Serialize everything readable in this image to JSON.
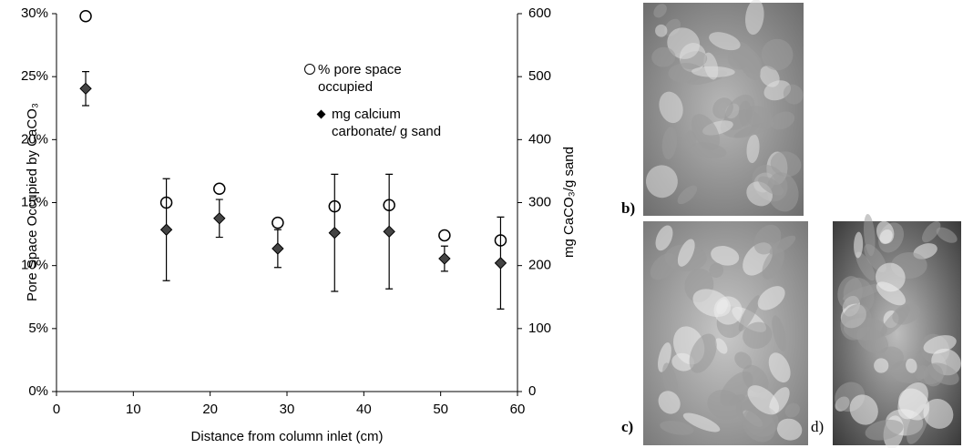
{
  "chart_data": {
    "type": "scatter",
    "x": [
      3.8,
      14.3,
      21.2,
      28.8,
      36.2,
      43.3,
      50.5,
      57.8
    ],
    "series": [
      {
        "name": "% pore space occupied",
        "marker": "circle",
        "color": "#000000",
        "values": [
          29.8,
          15.0,
          16.1,
          13.4,
          14.7,
          14.8,
          12.4,
          12.0
        ]
      },
      {
        "name": "mg calcium carbonate/ g sand",
        "marker": "diamond",
        "color": "#000000",
        "axis": "y2",
        "values": [
          481,
          257,
          275,
          227,
          252,
          254,
          211,
          204
        ],
        "errors": [
          27,
          81,
          30,
          30,
          93,
          91,
          20,
          73
        ]
      }
    ],
    "xlabel": "Distance from column inlet (cm)",
    "ylabel": "Pore Space Occupied by CaCO₃",
    "y2label": "mg CaCO₃/g sand",
    "xlim": [
      0,
      60
    ],
    "xticks": [
      0,
      10,
      20,
      30,
      40,
      50,
      60
    ],
    "ylim": [
      0,
      30
    ],
    "yticks": [
      {
        "value": 0,
        "label": "0%"
      },
      {
        "value": 5,
        "label": "5%"
      },
      {
        "value": 10,
        "label": "10%"
      },
      {
        "value": 15,
        "label": "15%"
      },
      {
        "value": 20,
        "label": "20%"
      },
      {
        "value": 25,
        "label": "25%"
      },
      {
        "value": 30,
        "label": "30%"
      }
    ],
    "y2lim": [
      0,
      600
    ],
    "y2ticks": [
      0,
      100,
      200,
      300,
      400,
      500,
      600
    ],
    "grid": false
  },
  "panels": [
    "b)",
    "c)",
    "d)"
  ]
}
